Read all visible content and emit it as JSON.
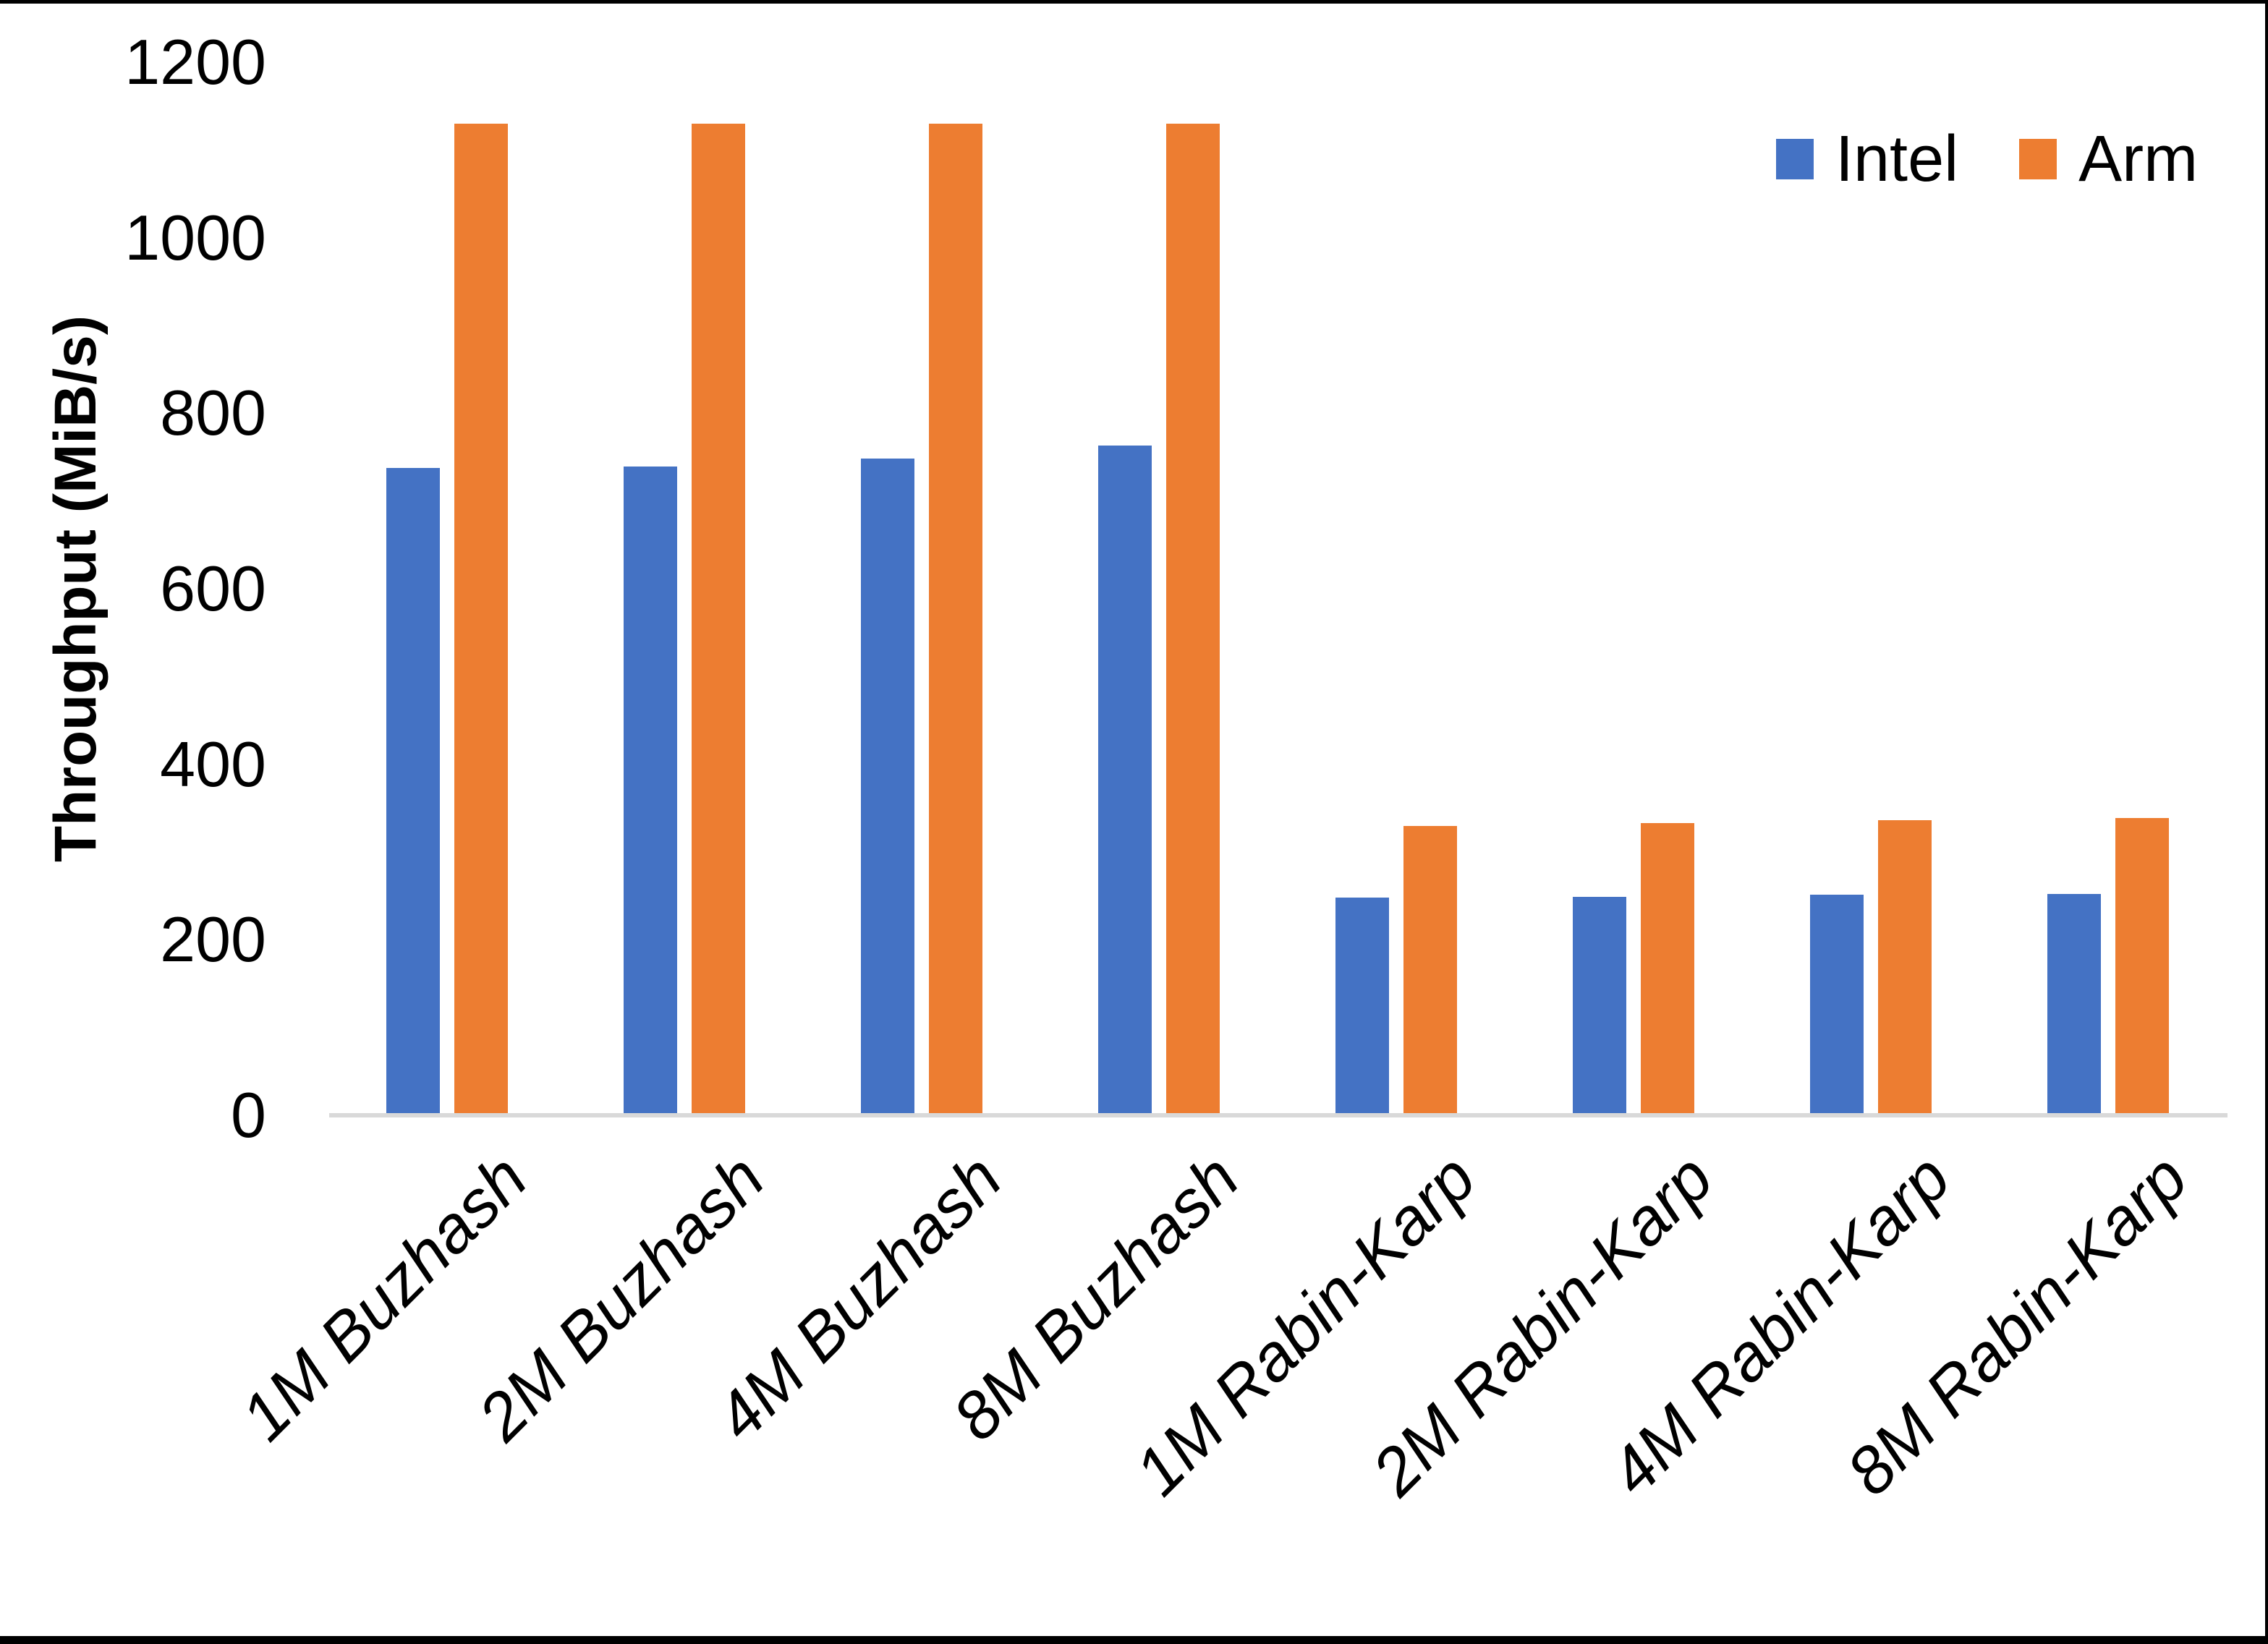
{
  "chart_data": {
    "type": "bar",
    "title": "",
    "categories": [
      "1M Buzhash",
      "2M Buzhash",
      "4M Buzhash",
      "8M Buzhash",
      "1M Rabin-Karp",
      "2M Rabin-Karp",
      "4M Rabin-Karp",
      "8M Rabin-Karp"
    ],
    "series": [
      {
        "name": "Intel",
        "color": "#4472C4",
        "values": [
          738,
          739,
          748,
          763,
          248,
          249,
          251,
          252
        ]
      },
      {
        "name": "Arm",
        "color": "#ED7D31",
        "values": [
          1130,
          1130,
          1130,
          1130,
          330,
          333,
          336,
          339
        ]
      }
    ],
    "xlabel": "",
    "ylabel": "Throughput (MiB/s)",
    "ylim": [
      0,
      1200
    ],
    "yticks": [
      0,
      200,
      400,
      600,
      800,
      1000,
      1200
    ],
    "grid": false,
    "legend_position": "top-right",
    "axis_line_color": "#D9D9D9",
    "text_color": "#000000",
    "background_color": "#FFFFFF"
  }
}
